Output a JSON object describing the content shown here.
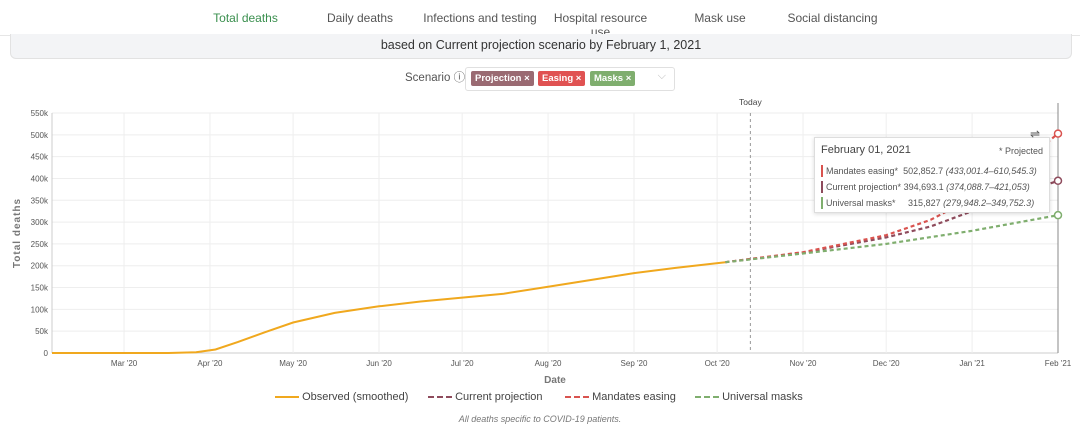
{
  "tabs": [
    {
      "label": "Total deaths",
      "active": true
    },
    {
      "label": "Daily deaths"
    },
    {
      "label": "Infections and testing"
    },
    {
      "label": "Hospital resource use"
    },
    {
      "label": "Mask use"
    },
    {
      "label": "Social distancing"
    }
  ],
  "banner": "based on Current projection scenario by February 1, 2021",
  "scenario": {
    "label": "Scenario",
    "info_icon": "ⓘ",
    "chips": [
      {
        "label": "Projection",
        "color": "#9a6a72"
      },
      {
        "label": "Easing",
        "color": "#e05252"
      },
      {
        "label": "Masks",
        "color": "#7fae6e"
      }
    ],
    "remove_glyph": "×",
    "dropdown_glyph": "⌵"
  },
  "tooltip": {
    "date": "February 01, 2021",
    "note": "* Projected",
    "rows": [
      {
        "name": "Mandates easing*",
        "value": "502,852.7",
        "range": "(433,001.4–610,545.3)",
        "color": "#d9534f"
      },
      {
        "name": "Current projection*",
        "value": "394,693.1",
        "range": "(374,088.7–421,053)",
        "color": "#8e4b5c"
      },
      {
        "name": "Universal masks*",
        "value": "315,827",
        "range": "(279,948.2–349,752.3)",
        "color": "#7fae6e"
      }
    ]
  },
  "footnote": "All deaths specific to COVID-19 patients.",
  "chart_data": {
    "type": "line",
    "xlabel": "Date",
    "ylabel": "Total deaths",
    "ylim": [
      0,
      550000
    ],
    "xlim_days": [
      3,
      366
    ],
    "x_origin": "2020-02-01",
    "yticks": [
      {
        "v": 0,
        "l": "0"
      },
      {
        "v": 50000,
        "l": "50k"
      },
      {
        "v": 100000,
        "l": "100k"
      },
      {
        "v": 150000,
        "l": "150k"
      },
      {
        "v": 200000,
        "l": "200k"
      },
      {
        "v": 250000,
        "l": "250k"
      },
      {
        "v": 300000,
        "l": "300k"
      },
      {
        "v": 350000,
        "l": "350k"
      },
      {
        "v": 400000,
        "l": "400k"
      },
      {
        "v": 450000,
        "l": "450k"
      },
      {
        "v": 500000,
        "l": "500k"
      },
      {
        "v": 550000,
        "l": "550k"
      }
    ],
    "xticks": [
      {
        "d": 29,
        "l": "Mar '20"
      },
      {
        "d": 60,
        "l": "Apr '20"
      },
      {
        "d": 90,
        "l": "May '20"
      },
      {
        "d": 121,
        "l": "Jun '20"
      },
      {
        "d": 151,
        "l": "Jul '20"
      },
      {
        "d": 182,
        "l": "Aug '20"
      },
      {
        "d": 213,
        "l": "Sep '20"
      },
      {
        "d": 243,
        "l": "Oct '20"
      },
      {
        "d": 274,
        "l": "Nov '20"
      },
      {
        "d": 304,
        "l": "Dec '20"
      },
      {
        "d": 335,
        "l": "Jan '21"
      },
      {
        "d": 366,
        "l": "Feb '21"
      }
    ],
    "today": {
      "d": 255,
      "label": "Today"
    },
    "series": [
      {
        "name": "Observed (smoothed)",
        "color": "#f0a81e",
        "dash": false,
        "points": [
          [
            3,
            0
          ],
          [
            45,
            0
          ],
          [
            55,
            1500
          ],
          [
            62,
            8000
          ],
          [
            70,
            25000
          ],
          [
            80,
            48000
          ],
          [
            90,
            70000
          ],
          [
            105,
            92000
          ],
          [
            121,
            107000
          ],
          [
            136,
            118000
          ],
          [
            151,
            127000
          ],
          [
            166,
            136000
          ],
          [
            182,
            152000
          ],
          [
            198,
            168000
          ],
          [
            213,
            183000
          ],
          [
            228,
            195000
          ],
          [
            246,
            208000
          ]
        ]
      },
      {
        "name": "Current projection",
        "color": "#8e4b5c",
        "dash": true,
        "points": [
          [
            246,
            208000
          ],
          [
            274,
            230000
          ],
          [
            304,
            265000
          ],
          [
            320,
            290000
          ],
          [
            335,
            325000
          ],
          [
            350,
            360000
          ],
          [
            366,
            394693
          ]
        ]
      },
      {
        "name": "Mandates easing",
        "color": "#d9534f",
        "dash": true,
        "points": [
          [
            246,
            208000
          ],
          [
            274,
            231000
          ],
          [
            304,
            270000
          ],
          [
            320,
            305000
          ],
          [
            335,
            355000
          ],
          [
            350,
            420000
          ],
          [
            366,
            502853
          ]
        ]
      },
      {
        "name": "Universal masks",
        "color": "#7fae6e",
        "dash": true,
        "points": [
          [
            246,
            208000
          ],
          [
            274,
            228000
          ],
          [
            304,
            250000
          ],
          [
            335,
            280000
          ],
          [
            366,
            315827
          ]
        ]
      }
    ]
  }
}
